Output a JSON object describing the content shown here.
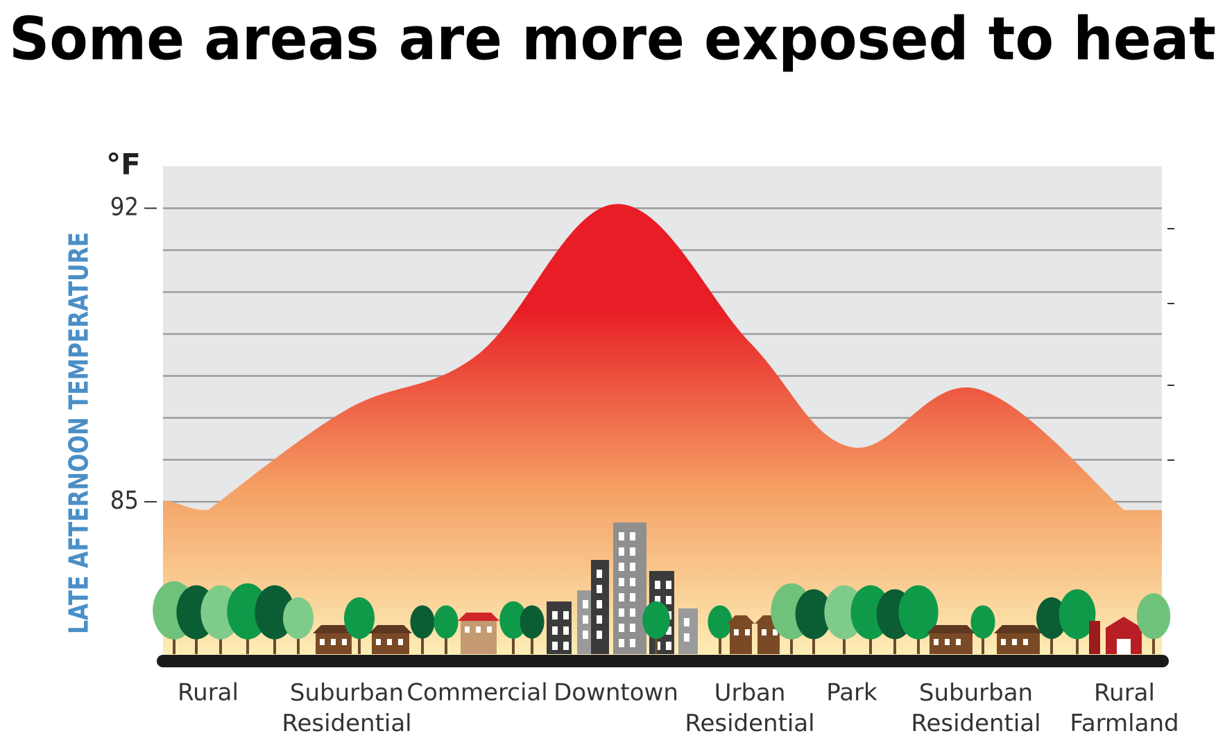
{
  "chart_data": {
    "type": "area",
    "title": "Some areas are more exposed to heat",
    "y_label": "LATE AFTERNOON TEMPERATURE",
    "y_unit": "°F",
    "categories": [
      "Rural",
      "Suburban Residential",
      "Commercial",
      "Downtown",
      "Urban Residential",
      "Park",
      "Suburban Residential",
      "Rural Farmland"
    ],
    "values": [
      84.8,
      87.2,
      88.5,
      92.1,
      88.8,
      86.3,
      87.7,
      84.8
    ],
    "ylim": [
      81.2,
      93
    ],
    "yticks": [
      85,
      92
    ],
    "minor_yticks": [
      86,
      87,
      88,
      89,
      90,
      91
    ],
    "grid": true,
    "y_label_color": "#4a8fc7",
    "gradient": [
      "#e81d25",
      "#f4a064",
      "#fdf0b8"
    ]
  }
}
